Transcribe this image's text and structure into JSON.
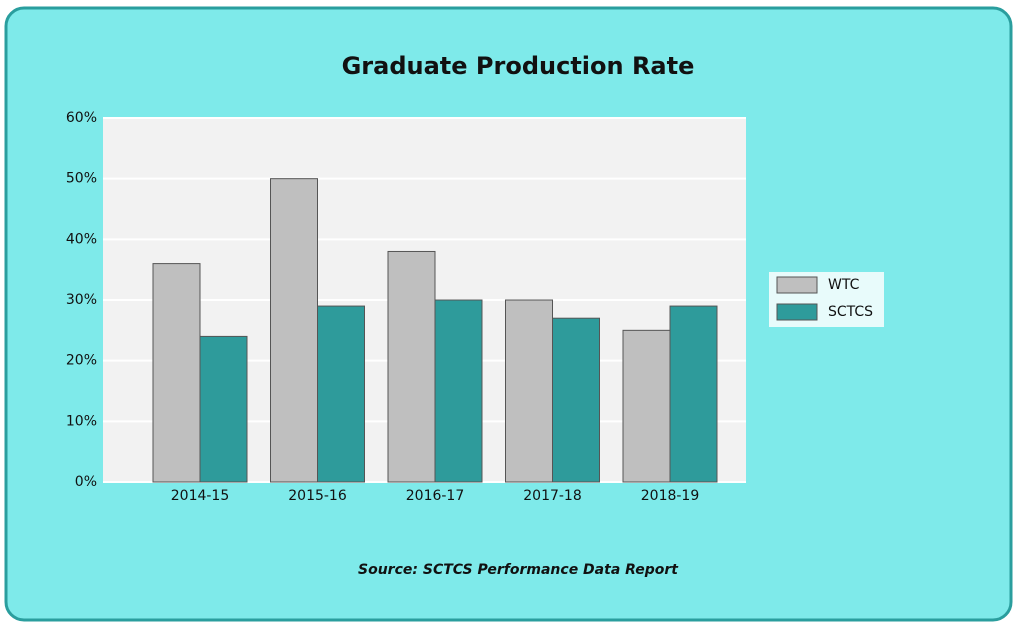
{
  "chart_data": {
    "type": "bar",
    "title": "Graduate Production Rate",
    "source": "Source: SCTCS Performance Data Report",
    "categories": [
      "2014-15",
      "2015-16",
      "2016-17",
      "2017-18",
      "2018-19"
    ],
    "series": [
      {
        "name": "WTC",
        "color": "#bfbfbf",
        "values": [
          36,
          50,
          38,
          30,
          25
        ]
      },
      {
        "name": "SCTCS",
        "color": "#2e9b9b",
        "values": [
          24,
          29,
          30,
          27,
          29
        ]
      }
    ],
    "ylim": [
      0,
      60
    ],
    "yticks": [
      {
        "value": 0,
        "label": "0%"
      },
      {
        "value": 10,
        "label": "10%"
      },
      {
        "value": 20,
        "label": "20%"
      },
      {
        "value": 30,
        "label": "30%"
      },
      {
        "value": 40,
        "label": "40%"
      },
      {
        "value": 50,
        "label": "50%"
      },
      {
        "value": 60,
        "label": "60%"
      }
    ],
    "grid": true,
    "legend": "right"
  }
}
